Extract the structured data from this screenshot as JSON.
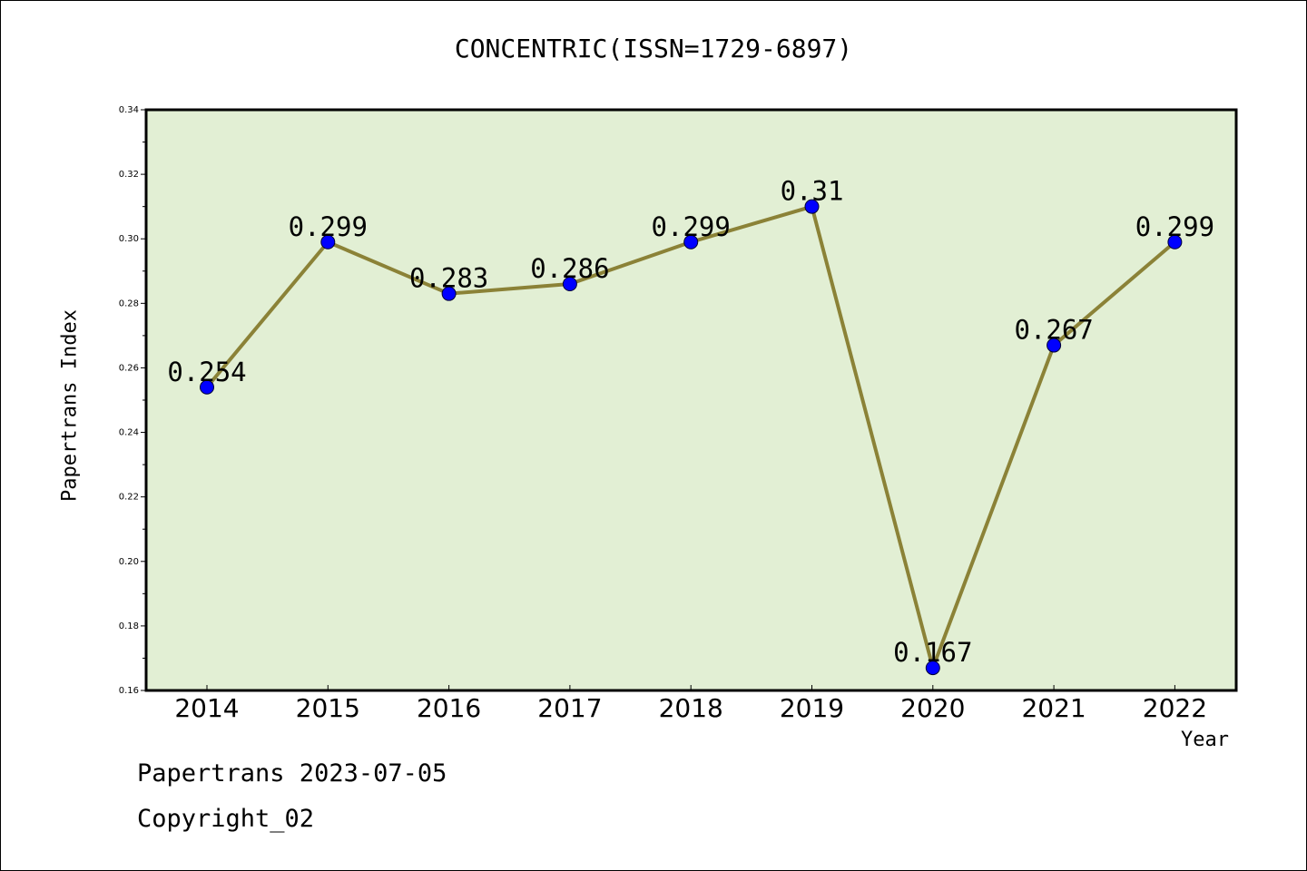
{
  "chart_data": {
    "type": "line",
    "title": "CONCENTRIC(ISSN=1729-6897)",
    "xlabel": "Year",
    "ylabel": "Papertrans Index",
    "categories": [
      "2014",
      "2015",
      "2016",
      "2017",
      "2018",
      "2019",
      "2020",
      "2021",
      "2022"
    ],
    "series": [
      {
        "values": [
          0.254,
          0.299,
          0.283,
          0.286,
          0.299,
          0.31,
          0.167,
          0.267,
          0.299
        ]
      }
    ],
    "data_labels": [
      "0.254",
      "0.299",
      "0.283",
      "0.286",
      "0.299",
      "0.31",
      "0.167",
      "0.267",
      "0.299"
    ],
    "ylim": [
      0.16,
      0.34
    ],
    "yticks": [
      "0.16",
      "0.18",
      "0.20",
      "0.22",
      "0.24",
      "0.26",
      "0.28",
      "0.30",
      "0.32",
      "0.34"
    ],
    "grid": false,
    "legend": "none",
    "colors": {
      "plot_background": "#e2efd4",
      "line": "#8b8237",
      "marker": "#0000ff",
      "axis": "#000000"
    }
  },
  "footer": {
    "line1": "Papertrans 2023-07-05",
    "line2": "Copyright_02"
  }
}
